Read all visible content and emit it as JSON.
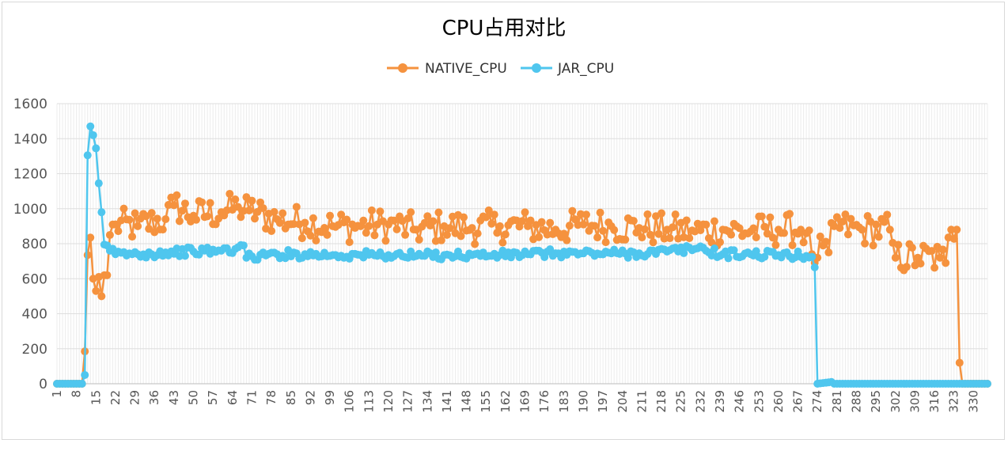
{
  "chart_data": {
    "type": "line",
    "title": "CPU占用对比",
    "xlabel": "",
    "ylabel": "",
    "ylim": [
      0,
      1600
    ],
    "yticks": [
      0,
      200,
      400,
      600,
      800,
      1000,
      1200,
      1400,
      1600
    ],
    "x_count": 335,
    "xtick_labels": [
      "1",
      "8",
      "15",
      "22",
      "29",
      "36",
      "43",
      "50",
      "57",
      "64",
      "71",
      "78",
      "85",
      "92",
      "99",
      "106",
      "113",
      "120",
      "127",
      "134",
      "141",
      "148",
      "155",
      "162",
      "169",
      "176",
      "183",
      "190",
      "197",
      "204",
      "211",
      "218",
      "225",
      "232",
      "239",
      "246",
      "253",
      "260",
      "267",
      "274",
      "281",
      "288",
      "295",
      "302",
      "309",
      "316",
      "323",
      "330"
    ],
    "grid": true,
    "legend_position": "top-center",
    "series": [
      {
        "name": "NATIVE_CPU",
        "color": "#F5923E",
        "anchors": [
          [
            1,
            0
          ],
          [
            10,
            0
          ],
          [
            11,
            185
          ],
          [
            12,
            735
          ],
          [
            13,
            835
          ],
          [
            14,
            600
          ],
          [
            15,
            530
          ],
          [
            16,
            610
          ],
          [
            17,
            500
          ],
          [
            18,
            620
          ],
          [
            19,
            620
          ],
          [
            20,
            850
          ],
          [
            22,
            910
          ],
          [
            30,
            900
          ],
          [
            40,
            940
          ],
          [
            43,
            1020
          ],
          [
            50,
            960
          ],
          [
            60,
            980
          ],
          [
            66,
            1010
          ],
          [
            70,
            990
          ],
          [
            80,
            940
          ],
          [
            90,
            920
          ],
          [
            100,
            900
          ],
          [
            110,
            900
          ],
          [
            120,
            910
          ],
          [
            130,
            880
          ],
          [
            140,
            900
          ],
          [
            150,
            890
          ],
          [
            160,
            900
          ],
          [
            170,
            900
          ],
          [
            180,
            880
          ],
          [
            190,
            910
          ],
          [
            200,
            900
          ],
          [
            210,
            890
          ],
          [
            220,
            880
          ],
          [
            230,
            870
          ],
          [
            240,
            880
          ],
          [
            250,
            870
          ],
          [
            260,
            880
          ],
          [
            268,
            880
          ],
          [
            270,
            860
          ],
          [
            272,
            740
          ],
          [
            274,
            720
          ],
          [
            276,
            790
          ],
          [
            278,
            750
          ],
          [
            280,
            900
          ],
          [
            290,
            880
          ],
          [
            300,
            880
          ],
          [
            302,
            720
          ],
          [
            310,
            720
          ],
          [
            318,
            720
          ],
          [
            320,
            690
          ],
          [
            322,
            880
          ],
          [
            324,
            880
          ],
          [
            325,
            120
          ],
          [
            326,
            0
          ],
          [
            335,
            0
          ]
        ],
        "jitter": 95
      },
      {
        "name": "JAR_CPU",
        "color": "#4FC6EE",
        "anchors": [
          [
            1,
            0
          ],
          [
            10,
            0
          ],
          [
            11,
            50
          ],
          [
            12,
            1305
          ],
          [
            13,
            1470
          ],
          [
            14,
            1420
          ],
          [
            15,
            1345
          ],
          [
            16,
            1145
          ],
          [
            17,
            980
          ],
          [
            18,
            795
          ],
          [
            19,
            790
          ],
          [
            20,
            760
          ],
          [
            22,
            740
          ],
          [
            30,
            740
          ],
          [
            40,
            750
          ],
          [
            50,
            755
          ],
          [
            60,
            760
          ],
          [
            65,
            770
          ],
          [
            68,
            790
          ],
          [
            69,
            720
          ],
          [
            80,
            740
          ],
          [
            90,
            740
          ],
          [
            100,
            735
          ],
          [
            110,
            735
          ],
          [
            120,
            735
          ],
          [
            130,
            730
          ],
          [
            140,
            735
          ],
          [
            150,
            735
          ],
          [
            160,
            735
          ],
          [
            170,
            740
          ],
          [
            180,
            745
          ],
          [
            190,
            745
          ],
          [
            200,
            745
          ],
          [
            210,
            745
          ],
          [
            220,
            755
          ],
          [
            230,
            770
          ],
          [
            232,
            785
          ],
          [
            234,
            760
          ],
          [
            240,
            740
          ],
          [
            250,
            740
          ],
          [
            260,
            735
          ],
          [
            270,
            730
          ],
          [
            272,
            725
          ],
          [
            273,
            665
          ],
          [
            274,
            0
          ],
          [
            279,
            10
          ],
          [
            280,
            0
          ],
          [
            335,
            0
          ]
        ],
        "jitter": 25
      }
    ]
  }
}
